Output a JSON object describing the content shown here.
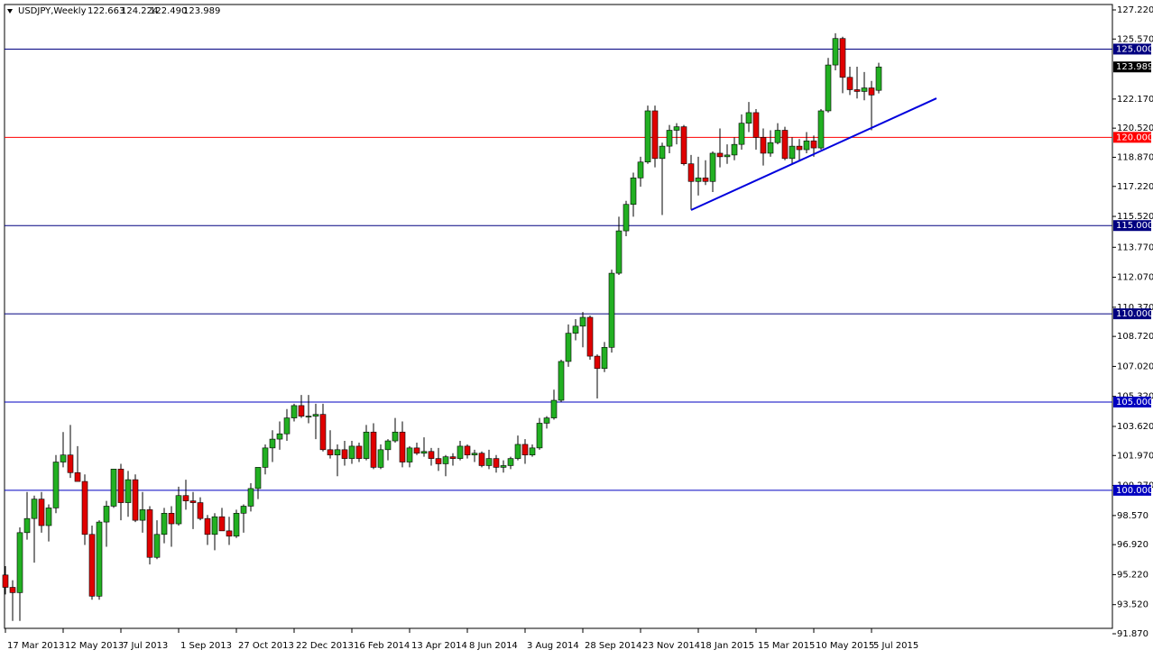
{
  "chart_data": {
    "type": "candlestick",
    "symbol": "USDJPY,Weekly",
    "ohlc_labels": [
      "122.663",
      "124.224",
      "122.490",
      "123.989"
    ],
    "categories": [
      "17 Mar 2013",
      null,
      null,
      null,
      null,
      null,
      null,
      null,
      "12 May 2013",
      null,
      null,
      null,
      null,
      null,
      null,
      null,
      "7 Jul 2013",
      null,
      null,
      null,
      null,
      null,
      null,
      null,
      "1 Sep 2013",
      null,
      null,
      null,
      null,
      null,
      null,
      null,
      "27 Oct 2013",
      null,
      null,
      null,
      null,
      null,
      null,
      null,
      "22 Dec 2013",
      null,
      null,
      null,
      null,
      null,
      null,
      null,
      "16 Feb 2014",
      null,
      null,
      null,
      null,
      null,
      null,
      null,
      "13 Apr 2014",
      null,
      null,
      null,
      null,
      null,
      null,
      null,
      "8 Jun 2014",
      null,
      null,
      null,
      null,
      null,
      null,
      null,
      "3 Aug 2014",
      null,
      null,
      null,
      null,
      null,
      null,
      null,
      "28 Sep 2014",
      null,
      null,
      null,
      null,
      null,
      null,
      null,
      "23 Nov 2014",
      null,
      null,
      null,
      null,
      null,
      null,
      null,
      "18 Jan 2015",
      null,
      null,
      null,
      null,
      null,
      null,
      null,
      "15 Mar 2015",
      null,
      null,
      null,
      null,
      null,
      null,
      null,
      "10 May 2015",
      null,
      null,
      null,
      null,
      null,
      null,
      null,
      "5 Jul 2015",
      null
    ],
    "open": [
      95.2,
      94.5,
      94.2,
      97.6,
      98.4,
      99.5,
      98.0,
      99.0,
      101.6,
      102.0,
      101.0,
      100.5,
      97.5,
      94.0,
      98.2,
      99.1,
      101.2,
      99.3,
      100.6,
      98.3,
      98.9,
      96.2,
      97.5,
      98.7,
      98.1,
      99.7,
      99.4,
      99.3,
      98.4,
      97.5,
      98.5,
      97.7,
      97.4,
      98.7,
      99.1,
      100.1,
      101.3,
      102.4,
      102.9,
      103.2,
      104.1,
      104.8,
      104.2,
      104.2,
      104.3,
      102.3,
      102.0,
      102.3,
      101.8,
      102.5,
      101.8,
      103.3,
      101.3,
      102.3,
      102.8,
      103.3,
      101.6,
      102.4,
      102.1,
      102.2,
      101.8,
      101.5,
      101.9,
      101.8,
      102.5,
      102.0,
      102.1,
      101.4,
      101.8,
      101.3,
      101.4,
      101.8,
      102.6,
      102.0,
      102.4,
      103.8,
      104.1,
      105.1,
      107.3,
      108.9,
      109.3,
      109.8,
      107.6,
      106.9,
      108.1,
      112.3,
      114.7,
      116.2,
      117.7,
      118.6,
      121.5,
      118.8,
      119.5,
      120.4,
      120.6,
      118.5,
      117.5,
      117.7,
      117.5,
      119.1,
      118.9,
      119.0,
      119.6,
      120.8,
      121.4,
      120.0,
      119.1,
      119.7,
      120.4,
      118.8,
      119.5,
      119.3,
      119.8,
      119.4,
      121.5,
      124.1,
      125.6,
      123.4,
      122.7,
      122.6,
      122.8,
      122.663
    ],
    "high": [
      95.7,
      94.9,
      97.9,
      99.9,
      99.7,
      99.9,
      99.2,
      102.0,
      103.3,
      103.7,
      102.5,
      100.9,
      98.0,
      98.3,
      99.4,
      101.2,
      101.5,
      101.1,
      100.9,
      99.9,
      99.1,
      98.3,
      99.0,
      99.1,
      100.2,
      100.6,
      99.9,
      99.6,
      98.6,
      98.7,
      99.0,
      98.5,
      98.9,
      99.2,
      100.4,
      101.3,
      102.6,
      103.4,
      103.9,
      104.6,
      104.9,
      105.4,
      105.4,
      104.9,
      104.9,
      103.4,
      102.6,
      102.8,
      102.8,
      102.7,
      103.7,
      103.8,
      102.6,
      102.9,
      104.1,
      103.9,
      102.5,
      102.7,
      103.0,
      102.4,
      102.4,
      102.0,
      102.1,
      102.8,
      102.6,
      102.3,
      102.2,
      102.3,
      102.0,
      101.7,
      101.9,
      103.1,
      102.9,
      102.6,
      104.1,
      104.2,
      105.7,
      107.4,
      109.4,
      109.7,
      110.1,
      109.9,
      107.7,
      108.4,
      112.5,
      115.5,
      116.4,
      118.0,
      118.9,
      121.8,
      121.8,
      119.7,
      120.7,
      120.8,
      120.7,
      119.0,
      118.9,
      118.7,
      119.2,
      120.5,
      119.6,
      120.0,
      121.3,
      122.0,
      121.6,
      120.5,
      120.4,
      120.8,
      120.6,
      120.0,
      119.9,
      120.3,
      120.1,
      121.6,
      124.5,
      125.9,
      125.7,
      124.0,
      124.0,
      123.7,
      123.2,
      124.224
    ],
    "low": [
      94.1,
      92.6,
      92.6,
      97.2,
      95.9,
      97.6,
      97.1,
      98.7,
      101.3,
      100.7,
      100.5,
      96.9,
      93.8,
      93.8,
      96.8,
      99.0,
      98.3,
      98.5,
      98.2,
      97.6,
      95.8,
      96.1,
      97.0,
      96.8,
      98.0,
      98.9,
      97.8,
      98.3,
      96.9,
      96.6,
      97.7,
      96.9,
      97.3,
      97.6,
      98.8,
      99.5,
      100.9,
      101.6,
      102.3,
      102.8,
      103.9,
      104.1,
      103.8,
      102.9,
      102.2,
      101.8,
      100.8,
      101.4,
      101.5,
      101.6,
      101.7,
      101.2,
      101.2,
      101.7,
      102.7,
      101.3,
      101.3,
      102.0,
      101.9,
      101.4,
      101.1,
      100.8,
      101.4,
      101.7,
      101.8,
      101.6,
      101.3,
      101.2,
      101.0,
      101.0,
      101.2,
      101.7,
      101.5,
      101.9,
      102.3,
      103.5,
      104.0,
      105.0,
      107.0,
      108.5,
      108.1,
      107.4,
      105.2,
      106.7,
      107.8,
      112.2,
      114.4,
      115.5,
      117.2,
      118.5,
      118.3,
      115.6,
      119.1,
      119.6,
      118.4,
      115.9,
      116.7,
      117.3,
      116.9,
      118.3,
      118.5,
      118.7,
      119.3,
      120.3,
      119.3,
      118.4,
      118.9,
      119.6,
      118.7,
      118.5,
      118.7,
      119.1,
      118.9,
      119.3,
      121.4,
      123.8,
      122.5,
      122.4,
      122.2,
      122.1,
      120.4,
      122.49
    ],
    "close": [
      94.5,
      94.2,
      97.6,
      98.4,
      99.5,
      98.0,
      99.0,
      101.6,
      102.0,
      101.0,
      100.5,
      97.5,
      94.0,
      98.2,
      99.1,
      101.2,
      99.3,
      100.6,
      98.3,
      98.9,
      96.2,
      97.5,
      98.7,
      98.1,
      99.7,
      99.4,
      99.3,
      98.4,
      97.5,
      98.5,
      97.7,
      97.4,
      98.7,
      99.1,
      100.1,
      101.3,
      102.4,
      102.9,
      103.2,
      104.1,
      104.8,
      104.2,
      104.2,
      104.3,
      102.3,
      102.0,
      102.3,
      101.8,
      102.5,
      101.8,
      103.3,
      101.3,
      102.3,
      102.8,
      103.3,
      101.6,
      102.4,
      102.1,
      102.2,
      101.8,
      101.5,
      101.9,
      101.8,
      102.5,
      102.0,
      102.1,
      101.4,
      101.8,
      101.3,
      101.4,
      101.8,
      102.6,
      102.0,
      102.4,
      103.8,
      104.1,
      105.1,
      107.3,
      108.9,
      109.3,
      109.8,
      107.6,
      106.9,
      108.1,
      112.3,
      114.7,
      116.2,
      117.7,
      118.6,
      121.5,
      118.8,
      119.5,
      120.4,
      120.6,
      118.5,
      117.5,
      117.7,
      117.5,
      119.1,
      118.9,
      119.0,
      119.6,
      120.8,
      121.4,
      120.0,
      119.1,
      119.7,
      120.4,
      118.8,
      119.5,
      119.3,
      119.8,
      119.4,
      121.5,
      124.1,
      125.6,
      123.4,
      122.7,
      122.6,
      122.8,
      122.4,
      123.989
    ],
    "up_color": "#22b022",
    "down_color": "#e00000",
    "wick_color": "#000000",
    "ylim": [
      91.87,
      127.22
    ],
    "yticks": [
      {
        "value": 127.22,
        "label": "127.220"
      },
      {
        "value": 125.57,
        "label": "125.570"
      },
      {
        "value": 122.17,
        "label": "122.170"
      },
      {
        "value": 120.52,
        "label": "120.520"
      },
      {
        "value": 118.87,
        "label": "118.870"
      },
      {
        "value": 117.22,
        "label": "117.220"
      },
      {
        "value": 115.52,
        "label": "115.520"
      },
      {
        "value": 113.77,
        "label": "113.770"
      },
      {
        "value": 112.07,
        "label": "112.070"
      },
      {
        "value": 110.37,
        "label": "110.370"
      },
      {
        "value": 108.72,
        "label": "108.720"
      },
      {
        "value": 107.02,
        "label": "107.020"
      },
      {
        "value": 105.32,
        "label": "105.320"
      },
      {
        "value": 103.62,
        "label": "103.620"
      },
      {
        "value": 101.97,
        "label": "101.970"
      },
      {
        "value": 100.27,
        "label": "100.270"
      },
      {
        "value": 98.57,
        "label": "98.570"
      },
      {
        "value": 96.92,
        "label": "96.920"
      },
      {
        "value": 95.22,
        "label": "95.220"
      },
      {
        "value": 93.52,
        "label": "93.520"
      },
      {
        "value": 91.87,
        "label": "91.870"
      }
    ],
    "levels": [
      {
        "value": 125,
        "label": "125.000",
        "color": "#000080"
      },
      {
        "value": 120,
        "label": "120.000",
        "color": "#ff0000"
      },
      {
        "value": 115,
        "label": "115.000",
        "color": "#000080"
      },
      {
        "value": 110,
        "label": "110.000",
        "color": "#000080"
      },
      {
        "value": 105,
        "label": "105.000",
        "color": "#0000c0"
      },
      {
        "value": 100,
        "label": "100.000",
        "color": "#0000c0"
      }
    ],
    "trendline": {
      "x": [
        95,
        129
      ],
      "y": [
        115.88,
        122.21
      ],
      "color": "#0000dd"
    }
  }
}
